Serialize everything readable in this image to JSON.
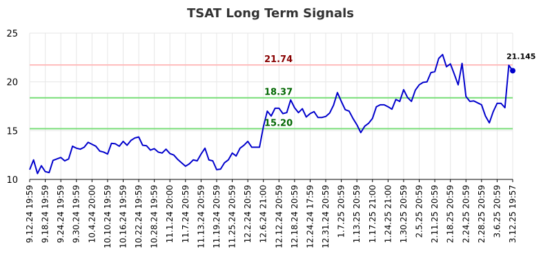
{
  "chart_data": {
    "type": "line",
    "title": "TSAT Long Term Signals",
    "xlabel": "",
    "ylabel": "",
    "ylim": [
      10,
      25
    ],
    "yticks": [
      "10",
      "15",
      "20",
      "25"
    ],
    "grid": true,
    "x_tick_labels": [
      "9.12.24 19:59",
      "9.18.24 19:59",
      "9.24.24 19:59",
      "9.30.24 19:59",
      "10.4.24 20:00",
      "10.10.24 19:59",
      "10.16.24 19:59",
      "10.22.24 19:59",
      "10.28.24 19:59",
      "11.1.24 20:00",
      "11.7.24 20:59",
      "11.13.24 20:59",
      "11.19.24 20:59",
      "11.25.24 20:59",
      "12.2.24 20:59",
      "12.6.24 21:00",
      "12.12.24 20:59",
      "12.18.24 20:59",
      "12.24.24 17:59",
      "12.31.24 20:59",
      "1.7.25 20:59",
      "1.13.25 20:59",
      "1.17.25 21:00",
      "1.24.25 21:00",
      "1.30.25 20:59",
      "2.5.25 20:59",
      "2.11.25 20:59",
      "2.18.25 20:59",
      "2.24.25 20:59",
      "2.28.25 20:59",
      "3.6.25 20:59",
      "3.12.25 19:57"
    ],
    "reference_lines": [
      {
        "value": 21.74,
        "label": "21.74",
        "color": "#ffbbbb",
        "label_color": "#880000"
      },
      {
        "value": 18.37,
        "label": "18.37",
        "color": "#77dd77",
        "label_color": "#006600"
      },
      {
        "value": 15.2,
        "label": "15.20",
        "color": "#77dd77",
        "label_color": "#006600"
      }
    ],
    "last_value_label": "21.145",
    "series": [
      {
        "color": "#0000cc",
        "values": [
          11.0,
          12.0,
          10.6,
          11.4,
          10.8,
          10.7,
          11.95,
          12.1,
          12.25,
          11.9,
          12.1,
          13.4,
          13.2,
          13.1,
          13.3,
          13.8,
          13.6,
          13.4,
          12.9,
          12.8,
          12.6,
          13.7,
          13.65,
          13.4,
          13.9,
          13.5,
          14.0,
          14.25,
          14.35,
          13.5,
          13.45,
          13.0,
          13.15,
          12.8,
          12.7,
          13.1,
          12.65,
          12.5,
          12.05,
          11.7,
          11.35,
          11.6,
          12.0,
          11.9,
          12.6,
          13.2,
          12.0,
          11.9,
          11.0,
          11.05,
          11.7,
          12.0,
          12.7,
          12.4,
          13.2,
          13.5,
          13.9,
          13.3,
          13.3,
          13.3,
          15.4,
          17.0,
          16.5,
          17.3,
          17.3,
          16.75,
          16.85,
          18.15,
          17.35,
          16.85,
          17.25,
          16.4,
          16.75,
          16.95,
          16.35,
          16.35,
          16.45,
          16.8,
          17.6,
          18.9,
          18.0,
          17.15,
          17.0,
          16.25,
          15.6,
          14.8,
          15.45,
          15.75,
          16.25,
          17.45,
          17.65,
          17.65,
          17.45,
          17.2,
          18.2,
          18.0,
          19.2,
          18.4,
          18.0,
          19.15,
          19.7,
          19.95,
          20.0,
          20.95,
          21.05,
          22.4,
          22.8,
          21.55,
          21.85,
          20.8,
          19.7,
          21.9,
          18.5,
          18.0,
          18.05,
          17.85,
          17.65,
          16.5,
          15.8,
          16.95,
          17.8,
          17.8,
          17.35,
          21.7,
          21.145
        ]
      }
    ]
  }
}
